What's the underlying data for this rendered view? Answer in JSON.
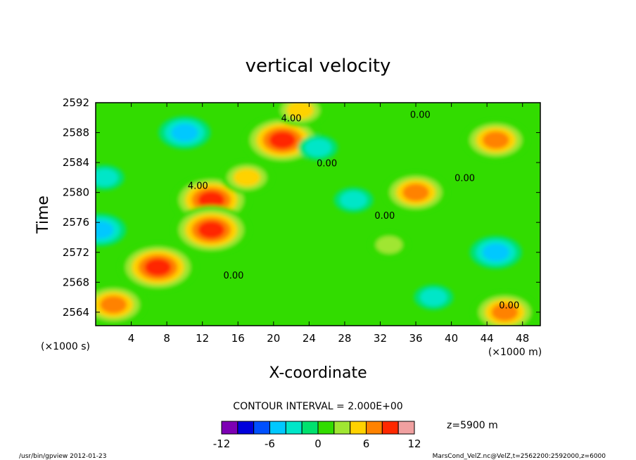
{
  "chart_data": {
    "type": "heatmap",
    "title": "vertical velocity",
    "xlabel": "X-coordinate",
    "ylabel": "Time",
    "x_unit": "(×1000 m)",
    "y_unit": "(×1000 s)",
    "xlim": [
      0,
      50
    ],
    "ylim": [
      2562.2,
      2592
    ],
    "x_ticks": [
      4,
      8,
      12,
      16,
      20,
      24,
      28,
      32,
      36,
      40,
      44,
      48
    ],
    "y_ticks": [
      2564,
      2568,
      2572,
      2576,
      2580,
      2584,
      2588,
      2592
    ],
    "contour_interval_text": "CONTOUR INTERVAL = 2.000E+00",
    "level_text": "z=5900  m",
    "colorbar": {
      "min": -12,
      "max": 12,
      "step": 2,
      "labels": [
        "-12",
        "-6",
        "0",
        "6",
        "12"
      ],
      "label_values": [
        -12,
        -6,
        0,
        6,
        12
      ],
      "colors": [
        "#7d00b4",
        "#0000dc",
        "#0050ff",
        "#00c8ff",
        "#00e6c8",
        "#00e16e",
        "#32dc00",
        "#a0e632",
        "#ffd200",
        "#ff8200",
        "#ff2800",
        "#f0a0a0"
      ]
    },
    "field_features": [
      {
        "x": 21,
        "y": 2587,
        "value": 11
      },
      {
        "x": 13,
        "y": 2579,
        "value": 11
      },
      {
        "x": 13,
        "y": 2575,
        "value": 10
      },
      {
        "x": 7,
        "y": 2570,
        "value": 10
      },
      {
        "x": 2,
        "y": 2565,
        "value": 9
      },
      {
        "x": 36,
        "y": 2580,
        "value": 9
      },
      {
        "x": 45,
        "y": 2587,
        "value": 8
      },
      {
        "x": 17,
        "y": 2582,
        "value": 7
      },
      {
        "x": 46,
        "y": 2564,
        "value": 8
      },
      {
        "x": 23,
        "y": 2591,
        "value": 7
      },
      {
        "x": 10,
        "y": 2588,
        "value": -7
      },
      {
        "x": 45,
        "y": 2572,
        "value": -7
      },
      {
        "x": 0.5,
        "y": 2575,
        "value": -6
      },
      {
        "x": 29,
        "y": 2579,
        "value": -5
      },
      {
        "x": 1,
        "y": 2582,
        "value": -5
      },
      {
        "x": 38,
        "y": 2566,
        "value": -5
      },
      {
        "x": 25,
        "y": 2586,
        "value": -4
      },
      {
        "x": 33,
        "y": 2573,
        "value": 4
      }
    ],
    "contour_labels": [
      {
        "text": "4.00",
        "x": 22,
        "y": 2589.5
      },
      {
        "text": "4.00",
        "x": 11.5,
        "y": 2580.5
      },
      {
        "text": "0.00",
        "x": 26,
        "y": 2583.5
      },
      {
        "text": "0.00",
        "x": 36.5,
        "y": 2590
      },
      {
        "text": "0.00",
        "x": 41.5,
        "y": 2581.5
      },
      {
        "text": "0.00",
        "x": 32.5,
        "y": 2576.5
      },
      {
        "text": "0.00",
        "x": 15.5,
        "y": 2568.5
      },
      {
        "text": "0.00",
        "x": 46.5,
        "y": 2564.5
      }
    ]
  },
  "footer": {
    "left": "/usr/bin/gpview  2012-01-23",
    "right": "MarsCond_VelZ.nc@VelZ,t=2562200:2592000,z=6000"
  }
}
